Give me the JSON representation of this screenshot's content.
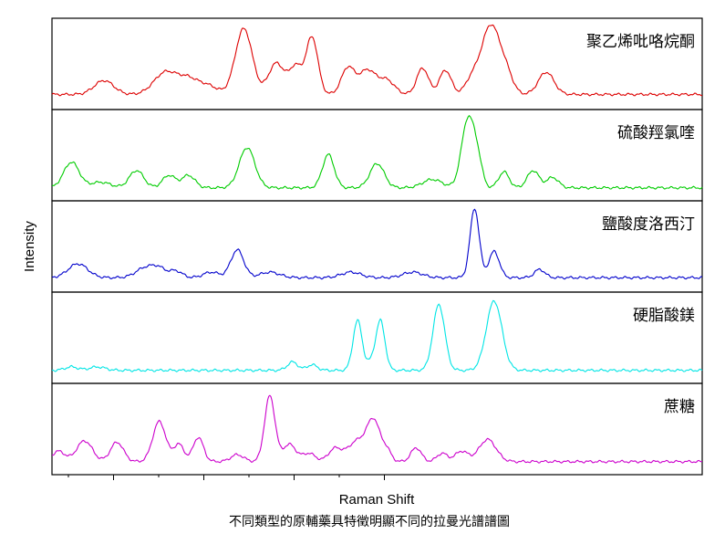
{
  "chart_data": {
    "type": "line",
    "xlabel": "Raman Shift",
    "ylabel": "Intensity",
    "caption": "不同類型的原輔藥具特徵明顯不同的拉曼光譜譜圖",
    "x_ticks": [],
    "y_ticks": [],
    "xlim": [
      0,
      100
    ],
    "grid": false,
    "legend": "none",
    "panels": [
      {
        "name": "聚乙烯吡咯烷酮",
        "color": "#dd0000",
        "baseline": 0.06,
        "peaks": [
          [
            8,
            0.2,
            1.5
          ],
          [
            17.5,
            0.32,
            1.8
          ],
          [
            21,
            0.2,
            1.5
          ],
          [
            24,
            0.12,
            1.5
          ],
          [
            29.5,
            0.95,
            1.3
          ],
          [
            34.5,
            0.45,
            1.2
          ],
          [
            37.5,
            0.4,
            1.0
          ],
          [
            40,
            0.82,
            0.9
          ],
          [
            45.5,
            0.38,
            1.0
          ],
          [
            48.5,
            0.35,
            1.3
          ],
          [
            51.5,
            0.2,
            1.2
          ],
          [
            57,
            0.38,
            0.9
          ],
          [
            60.5,
            0.35,
            0.9
          ],
          [
            64.5,
            0.18,
            1.0
          ],
          [
            67.5,
            1.0,
            1.5
          ],
          [
            70,
            0.2,
            1.0
          ],
          [
            76,
            0.32,
            1.2
          ]
        ]
      },
      {
        "name": "硫酸羥氯喹",
        "color": "#00cc00",
        "baseline": 0.03,
        "peaks": [
          [
            3,
            0.37,
            1.2
          ],
          [
            7.5,
            0.08,
            1.5
          ],
          [
            13,
            0.25,
            1.1
          ],
          [
            18,
            0.18,
            1.0
          ],
          [
            21,
            0.18,
            1.0
          ],
          [
            30,
            0.58,
            1.2
          ],
          [
            42.5,
            0.48,
            0.9
          ],
          [
            50,
            0.35,
            1.1
          ],
          [
            58.5,
            0.12,
            1.5
          ],
          [
            64,
            1.0,
            1.0
          ],
          [
            65.5,
            0.3,
            0.7
          ],
          [
            69.5,
            0.23,
            0.8
          ],
          [
            74,
            0.25,
            0.9
          ],
          [
            77,
            0.15,
            0.9
          ]
        ]
      },
      {
        "name": "鹽酸度洛西汀",
        "color": "#0000cc",
        "baseline": 0.05,
        "peaks": [
          [
            4,
            0.2,
            1.5
          ],
          [
            14.5,
            0.15,
            1.5
          ],
          [
            16.5,
            0.1,
            1.0
          ],
          [
            19,
            0.1,
            1.0
          ],
          [
            24.5,
            0.08,
            1.2
          ],
          [
            28.5,
            0.4,
            1.0
          ],
          [
            33.5,
            0.08,
            1.5
          ],
          [
            46,
            0.08,
            1.5
          ],
          [
            55.5,
            0.08,
            1.5
          ],
          [
            65,
            1.0,
            0.7
          ],
          [
            68,
            0.38,
            0.8
          ],
          [
            75,
            0.12,
            0.8
          ]
        ]
      },
      {
        "name": "硬脂酸鎂",
        "color": "#00e5e5",
        "baseline": 0.03,
        "peaks": [
          [
            3,
            0.05,
            1.0
          ],
          [
            7,
            0.05,
            1.2
          ],
          [
            37,
            0.12,
            0.8
          ],
          [
            40,
            0.08,
            0.8
          ],
          [
            47,
            0.72,
            0.7
          ],
          [
            49,
            0.1,
            0.6
          ],
          [
            50.5,
            0.72,
            0.7
          ],
          [
            59.5,
            0.95,
            0.9
          ],
          [
            68,
            1.0,
            1.2
          ]
        ]
      },
      {
        "name": "蔗糖",
        "color": "#cc00cc",
        "baseline": 0.03,
        "peaks": [
          [
            1,
            0.15,
            1.0
          ],
          [
            5,
            0.3,
            1.2
          ],
          [
            10,
            0.28,
            1.0
          ],
          [
            16.5,
            0.58,
            1.0
          ],
          [
            19.5,
            0.25,
            0.8
          ],
          [
            22.5,
            0.35,
            0.8
          ],
          [
            28.5,
            0.1,
            1.0
          ],
          [
            33.5,
            0.95,
            0.8
          ],
          [
            36.5,
            0.25,
            1.0
          ],
          [
            39.5,
            0.12,
            1.0
          ],
          [
            43.5,
            0.18,
            1.0
          ],
          [
            47,
            0.3,
            1.5
          ],
          [
            49.5,
            0.55,
            1.0
          ],
          [
            51.5,
            0.15,
            0.7
          ],
          [
            56,
            0.2,
            0.8
          ],
          [
            60,
            0.12,
            0.8
          ],
          [
            63,
            0.15,
            1.0
          ],
          [
            67,
            0.32,
            1.3
          ]
        ]
      }
    ]
  }
}
